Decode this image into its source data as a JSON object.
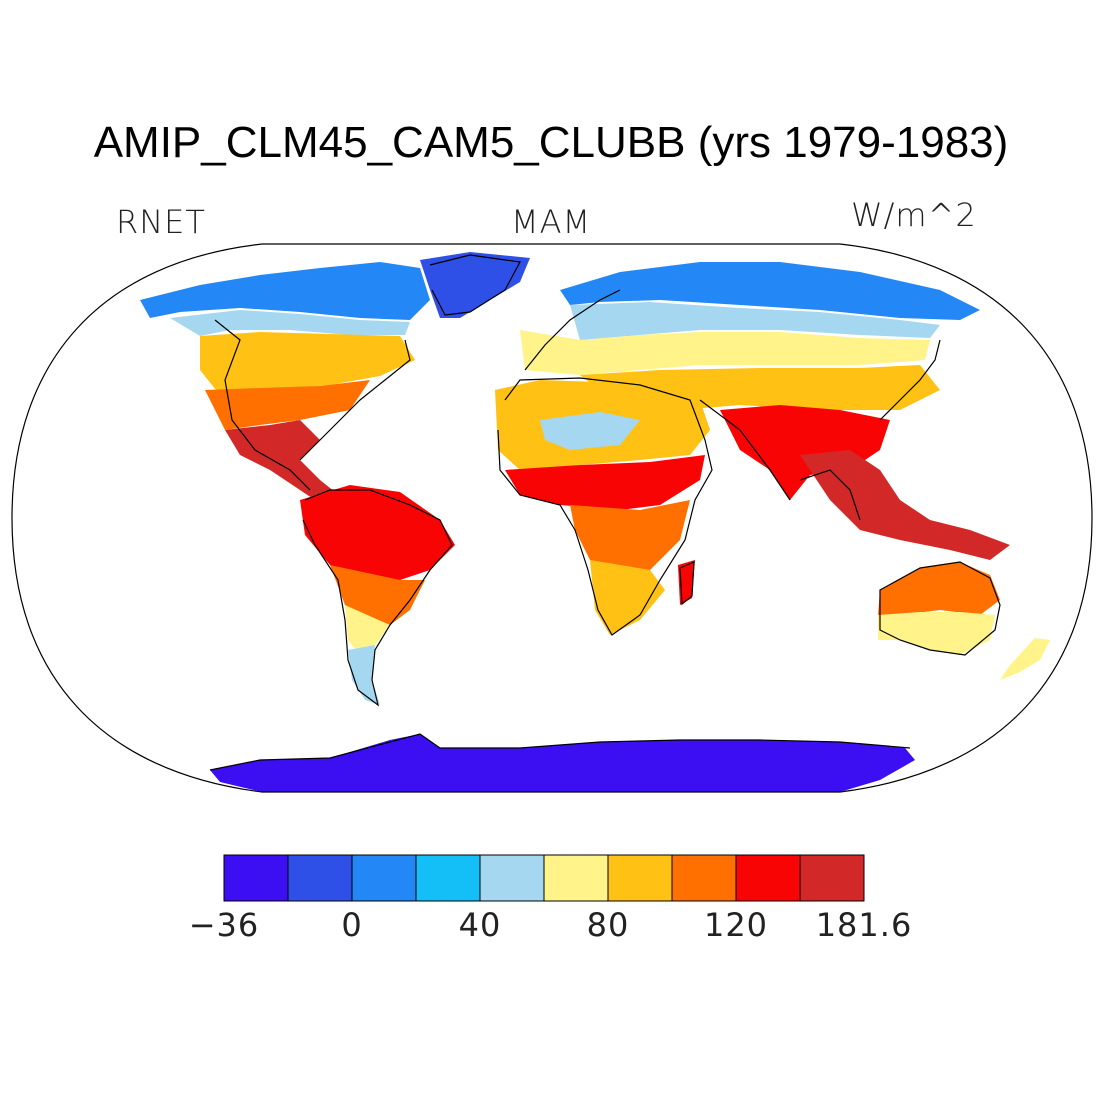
{
  "title": "AMIP_CLM45_CAM5_CLUBB (yrs 1979-1983)",
  "variable": "RNET",
  "season": "MAM",
  "units": "W/m^2",
  "colorbar": {
    "colors": [
      "#3b0ff2",
      "#2f50e6",
      "#2388f5",
      "#14bef6",
      "#a5d7f0",
      "#fff38a",
      "#ffc214",
      "#ff7000",
      "#f90404",
      "#d22828"
    ],
    "tick_labels": [
      "−36",
      "0",
      "40",
      "80",
      "120",
      "181.6"
    ]
  },
  "map": {
    "projection": "Robinson",
    "palette": {
      "deep_blue": "#3b0ff2",
      "blue": "#2f50e6",
      "mid_blue": "#2388f5",
      "cyan": "#14bef6",
      "light_blue": "#a5d7f0",
      "yellow": "#fff38a",
      "gold": "#ffc214",
      "orange": "#ff7000",
      "red": "#f90404",
      "dark_red": "#d22828"
    }
  }
}
